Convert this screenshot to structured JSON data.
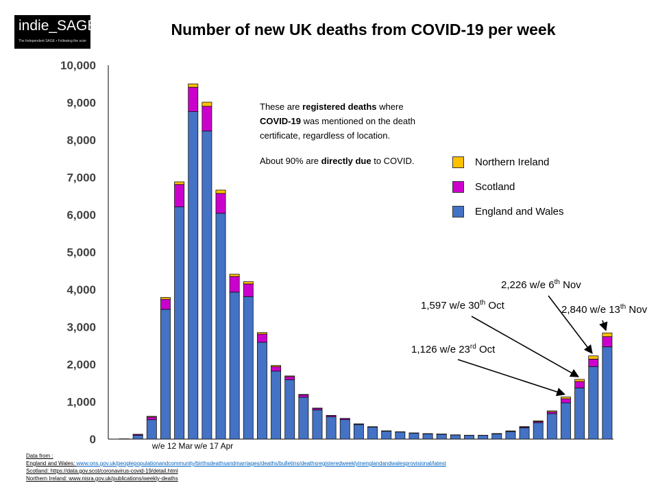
{
  "logo": {
    "name": "indie_SAGE",
    "tagline": "The Independent SAGE • Following the science"
  },
  "chart_data": {
    "type": "bar",
    "stacked": true,
    "title": "Number of new UK deaths from COVID-19 per week",
    "xlabel": "",
    "ylabel": "",
    "ylim": [
      0,
      10000
    ],
    "yticks": [
      "0",
      "1,000",
      "2,000",
      "3,000",
      "4,000",
      "5,000",
      "6,000",
      "7,000",
      "8,000",
      "9,000",
      "10,000"
    ],
    "x_tick_labels": [
      {
        "index": 4,
        "label": "w/e 12 Mar"
      },
      {
        "index": 7,
        "label": "w/e 17 Apr"
      }
    ],
    "legend_position": "right",
    "series": [
      {
        "name": "England and Wales",
        "color": "#4472c4",
        "values": [
          5,
          100,
          520,
          3470,
          6210,
          8760,
          8240,
          6040,
          3930,
          3810,
          2590,
          1820,
          1590,
          1120,
          780,
          600,
          520,
          390,
          320,
          210,
          190,
          160,
          140,
          130,
          110,
          100,
          100,
          140,
          200,
          300,
          440,
          680,
          970,
          1370,
          1940,
          2470
        ]
      },
      {
        "name": "Scotland",
        "color": "#cc00cc",
        "values": [
          2,
          25,
          70,
          270,
          600,
          650,
          660,
          530,
          420,
          340,
          220,
          120,
          80,
          60,
          40,
          30,
          30,
          15,
          10,
          10,
          5,
          5,
          5,
          5,
          3,
          3,
          3,
          5,
          10,
          20,
          30,
          50,
          110,
          170,
          200,
          270
        ]
      },
      {
        "name": "Northern Ireland",
        "color": "#ffc000",
        "values": [
          0,
          5,
          20,
          50,
          70,
          90,
          110,
          90,
          60,
          60,
          40,
          30,
          20,
          15,
          10,
          5,
          5,
          3,
          3,
          2,
          2,
          2,
          2,
          1,
          1,
          1,
          1,
          5,
          10,
          15,
          20,
          25,
          46,
          57,
          86,
          100
        ]
      }
    ],
    "annotations": [
      {
        "text": "1,126 w/e 23",
        "sup": "rd",
        "suffix": " Oct",
        "bar_index": 32
      },
      {
        "text": "1,597 w/e 30",
        "sup": "th",
        "suffix": " Oct",
        "bar_index": 33
      },
      {
        "text": "2,226 w/e 6",
        "sup": "th",
        "suffix": " Nov",
        "bar_index": 34
      },
      {
        "text": "2,840 w/e 13",
        "sup": "th",
        "suffix": " Nov",
        "bar_index": 35
      }
    ]
  },
  "note": {
    "p1_a": "These are ",
    "p1_b": "registered deaths",
    "p1_c": " where ",
    "p1_d": "COVID-19",
    "p1_e": " was mentioned on the death certificate, regardless of location.",
    "p2_a": "About 90% are ",
    "p2_b": "directly due",
    "p2_c": " to COVID."
  },
  "sources": {
    "heading": "Data from :",
    "ew_label": "England and Wales: ",
    "ew_link": "www.ons.gov.uk/peoplepopulationandcommunity/birthsdeathsandmarriages/deaths/bulletins/deathsregisteredweeklyinenglandandwalesprovisional/latest",
    "scotland": "Scotland: https://data.gov.scot/coronavirus-covid-19/detail.html",
    "ni": "Northern Ireland: www.nisra.gov.uk/publications/weekly-deaths"
  }
}
